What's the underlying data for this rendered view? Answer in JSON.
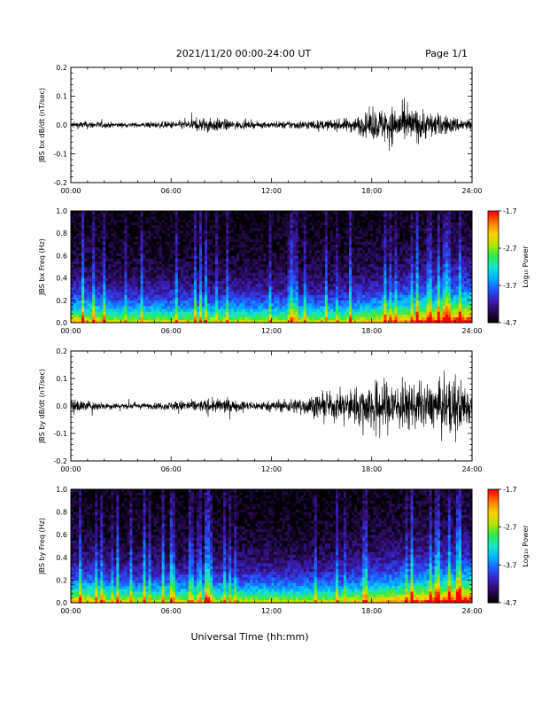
{
  "header": {
    "title": "2021/11/20  00:00-24:00 UT",
    "page": "Page 1/1"
  },
  "colors": {
    "trace": "#000000",
    "colormap": [
      "#000000",
      "#2b0a5a",
      "#3a1fbf",
      "#1f5bff",
      "#00b4ff",
      "#19e6c8",
      "#2ee84a",
      "#b8e600",
      "#ffd000",
      "#ff7a00",
      "#ff0000"
    ]
  },
  "xlabel": "Universal Time (hh:mm)",
  "colorbar": {
    "label": "Log₁₀ Power",
    "ticks": [
      "-1.7",
      "-2.7",
      "-3.7",
      "-4.7"
    ],
    "range": [
      -4.7,
      -1.7
    ]
  },
  "chart_data": [
    {
      "type": "line",
      "ylabel": "JBS bx dB/dt (nT/sec)",
      "xlim": [
        "00:00",
        "24:00"
      ],
      "ylim": [
        -0.2,
        0.2
      ],
      "x_ticks": [
        "00:00",
        "06:00",
        "12:00",
        "18:00",
        "24:00"
      ],
      "y_ticks": [
        "0.2",
        "0.1",
        "0.0",
        "-0.1",
        "-0.2"
      ],
      "series": [
        {
          "x": [
            0,
            1,
            2,
            3,
            4,
            5,
            6,
            7,
            8,
            9,
            10,
            11,
            12,
            13,
            14,
            15,
            16,
            17,
            18,
            19,
            20,
            21,
            22,
            23,
            24
          ],
          "amplitude": [
            0.02,
            0.025,
            0.02,
            0.015,
            0.015,
            0.02,
            0.025,
            0.03,
            0.05,
            0.04,
            0.025,
            0.02,
            0.02,
            0.025,
            0.03,
            0.03,
            0.035,
            0.05,
            0.09,
            0.12,
            0.11,
            0.1,
            0.07,
            0.05,
            0.04
          ]
        }
      ]
    },
    {
      "type": "heatmap",
      "ylabel": "JBS bx Freq (Hz)",
      "xlim": [
        "00:00",
        "24:00"
      ],
      "ylim": [
        0.0,
        1.0
      ],
      "x_ticks": [
        "00:00",
        "06:00",
        "12:00",
        "18:00",
        "24:00"
      ],
      "y_ticks": [
        "1.0",
        "0.8",
        "0.6",
        "0.4",
        "0.2",
        "0.0"
      ],
      "value_range": [
        -4.7,
        -1.7
      ]
    },
    {
      "type": "line",
      "ylabel": "JBS by dB/dt (nT/sec)",
      "xlim": [
        "00:00",
        "24:00"
      ],
      "ylim": [
        -0.2,
        0.2
      ],
      "x_ticks": [
        "00:00",
        "06:00",
        "12:00",
        "18:00",
        "24:00"
      ],
      "y_ticks": [
        "0.2",
        "0.1",
        "0.0",
        "-0.1",
        "-0.2"
      ],
      "series": [
        {
          "x": [
            0,
            1,
            2,
            3,
            4,
            5,
            6,
            7,
            8,
            9,
            10,
            11,
            12,
            13,
            14,
            15,
            16,
            17,
            18,
            19,
            20,
            21,
            22,
            23,
            24
          ],
          "amplitude": [
            0.05,
            0.035,
            0.025,
            0.02,
            0.02,
            0.02,
            0.03,
            0.04,
            0.04,
            0.05,
            0.035,
            0.03,
            0.035,
            0.045,
            0.06,
            0.08,
            0.09,
            0.12,
            0.16,
            0.18,
            0.16,
            0.14,
            0.15,
            0.2,
            0.12
          ]
        }
      ]
    },
    {
      "type": "heatmap",
      "ylabel": "JBS by Freq (Hz)",
      "xlim": [
        "00:00",
        "24:00"
      ],
      "ylim": [
        0.0,
        1.0
      ],
      "x_ticks": [
        "00:00",
        "06:00",
        "12:00",
        "18:00",
        "24:00"
      ],
      "y_ticks": [
        "1.0",
        "0.8",
        "0.6",
        "0.4",
        "0.2",
        "0.0"
      ],
      "value_range": [
        -4.7,
        -1.7
      ]
    }
  ]
}
